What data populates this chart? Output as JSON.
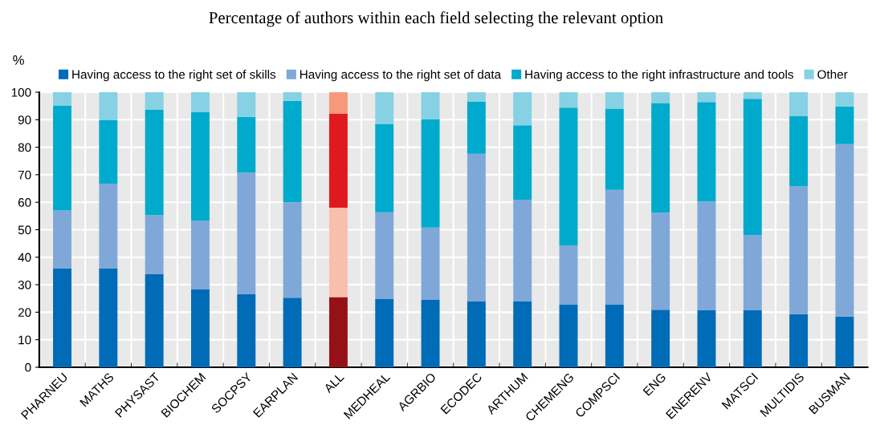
{
  "chart_data": {
    "type": "bar",
    "stacked": true,
    "title": "Percentage of authors within each field selecting the relevant option",
    "ylabel": "%",
    "categories": [
      "PHARNEU",
      "MATHS",
      "PHYSAST",
      "BIOCHEM",
      "SOCPSY",
      "EARPLAN",
      "ALL",
      "MEDHEAL",
      "AGRBIO",
      "ECODEC",
      "ARTHUM",
      "CHEMENG",
      "COMPSCI",
      "ENG",
      "ENERENV",
      "MATSCI",
      "MULTIDIS",
      "BUSMAN"
    ],
    "series": [
      {
        "name": "Having access to the right set of skills",
        "color": "#006bb6",
        "colors": [
          "#006bb6",
          "#006bb6",
          "#006bb6",
          "#006bb6",
          "#006bb6",
          "#006bb6",
          "#961017",
          "#006bb6",
          "#006bb6",
          "#006bb6",
          "#006bb6",
          "#006bb6",
          "#006bb6",
          "#006bb6",
          "#006bb6",
          "#006bb6",
          "#006bb6",
          "#006bb6"
        ],
        "values": [
          36,
          36,
          33.8,
          28.3,
          26.5,
          25.3,
          25.5,
          24.8,
          24.5,
          23.9,
          23.9,
          22.7,
          22.7,
          20.9,
          20.7,
          20.7,
          19.3,
          18.4
        ]
      },
      {
        "name": "Having access to the right set of data",
        "color": "#7fa8d9",
        "colors": [
          "#7fa8d9",
          "#7fa8d9",
          "#7fa8d9",
          "#7fa8d9",
          "#7fa8d9",
          "#7fa8d9",
          "#f9bfad",
          "#7fa8d9",
          "#7fa8d9",
          "#7fa8d9",
          "#7fa8d9",
          "#7fa8d9",
          "#7fa8d9",
          "#7fa8d9",
          "#7fa8d9",
          "#7fa8d9",
          "#7fa8d9",
          "#7fa8d9"
        ],
        "values": [
          21,
          30.7,
          21.5,
          24.9,
          44.3,
          34.7,
          32.5,
          31.5,
          26.3,
          53.7,
          37,
          21.5,
          41.8,
          35.3,
          39.6,
          27.4,
          46.5,
          62.7
        ]
      },
      {
        "name": "Having access to the right infrastructure and tools",
        "color": "#00aacc",
        "colors": [
          "#00aacc",
          "#00aacc",
          "#00aacc",
          "#00aacc",
          "#00aacc",
          "#00aacc",
          "#e0191f",
          "#00aacc",
          "#00aacc",
          "#00aacc",
          "#00aacc",
          "#00aacc",
          "#00aacc",
          "#00aacc",
          "#00aacc",
          "#00aacc",
          "#00aacc",
          "#00aacc"
        ],
        "values": [
          38.2,
          23.1,
          38.3,
          39.5,
          20.2,
          36.9,
          34.1,
          32.2,
          39.4,
          18.9,
          27.1,
          50.2,
          29.5,
          39.9,
          36.1,
          49.5,
          25.6,
          13.7
        ]
      },
      {
        "name": "Other",
        "color": "#86d1e4",
        "colors": [
          "#86d1e4",
          "#86d1e4",
          "#86d1e4",
          "#86d1e4",
          "#86d1e4",
          "#86d1e4",
          "#f7987a",
          "#86d1e4",
          "#86d1e4",
          "#86d1e4",
          "#86d1e4",
          "#86d1e4",
          "#86d1e4",
          "#86d1e4",
          "#86d1e4",
          "#86d1e4",
          "#86d1e4",
          "#86d1e4"
        ],
        "values": [
          4.8,
          10.2,
          6.4,
          7.3,
          9,
          3.1,
          7.9,
          11.5,
          9.8,
          3.5,
          12,
          5.6,
          6,
          3.9,
          3.6,
          2.4,
          8.6,
          5.2
        ]
      }
    ],
    "ylim": [
      0,
      100
    ],
    "yticks": [
      0,
      10,
      20,
      30,
      40,
      50,
      60,
      70,
      80,
      90,
      100
    ],
    "grid": true,
    "legend": "top"
  }
}
